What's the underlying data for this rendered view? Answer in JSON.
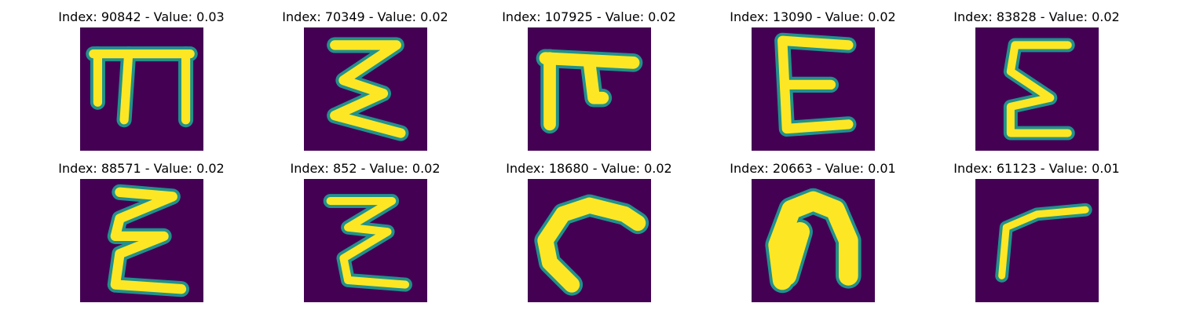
{
  "colors": {
    "background": "#440154",
    "colormap": [
      "#440154",
      "#31688e",
      "#21918c",
      "#35b779",
      "#90d743",
      "#fde725"
    ]
  },
  "panels": [
    {
      "title": "Index: 90842 - Value: 0.03"
    },
    {
      "title": "Index: 70349 - Value: 0.02"
    },
    {
      "title": "Index: 107925 - Value: 0.02"
    },
    {
      "title": "Index: 13090 - Value: 0.02"
    },
    {
      "title": "Index: 83828 - Value: 0.02"
    },
    {
      "title": "Index: 88571 - Value: 0.02"
    },
    {
      "title": "Index: 852 - Value: 0.02"
    },
    {
      "title": "Index: 18680 - Value: 0.02"
    },
    {
      "title": "Index: 20663 - Value: 0.01"
    },
    {
      "title": "Index: 61123 - Value: 0.01"
    }
  ]
}
